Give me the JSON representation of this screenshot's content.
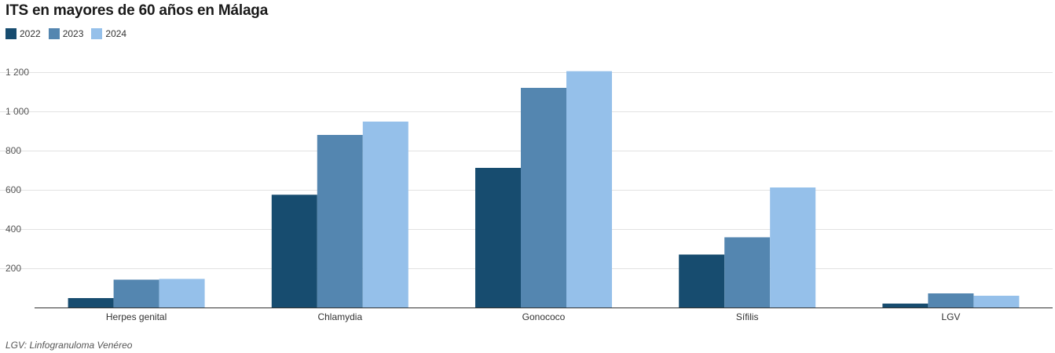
{
  "title": "ITS en mayores de 60 años en Málaga",
  "note": "LGV: Linfogranuloma Venéreo",
  "chart_data": {
    "type": "bar",
    "title": "ITS en mayores de 60 años en Málaga",
    "categories": [
      "Herpes genital",
      "Chlamydia",
      "Gonococo",
      "Sífilis",
      "LGV"
    ],
    "series": [
      {
        "name": "2022",
        "color": "#174c6f",
        "values": [
          48,
          575,
          712,
          270,
          20
        ]
      },
      {
        "name": "2023",
        "color": "#5486b0",
        "values": [
          142,
          880,
          1120,
          358,
          72
        ]
      },
      {
        "name": "2024",
        "color": "#95c0ea",
        "values": [
          146,
          948,
          1205,
          612,
          60
        ]
      }
    ],
    "y_ticks": [
      200,
      400,
      600,
      800,
      1000,
      1200
    ],
    "y_tick_labels": [
      "200",
      "400",
      "600",
      "800",
      "1 000",
      "1 200"
    ],
    "ylim": [
      0,
      1200
    ],
    "grid": true,
    "legend_position": "top-left"
  }
}
